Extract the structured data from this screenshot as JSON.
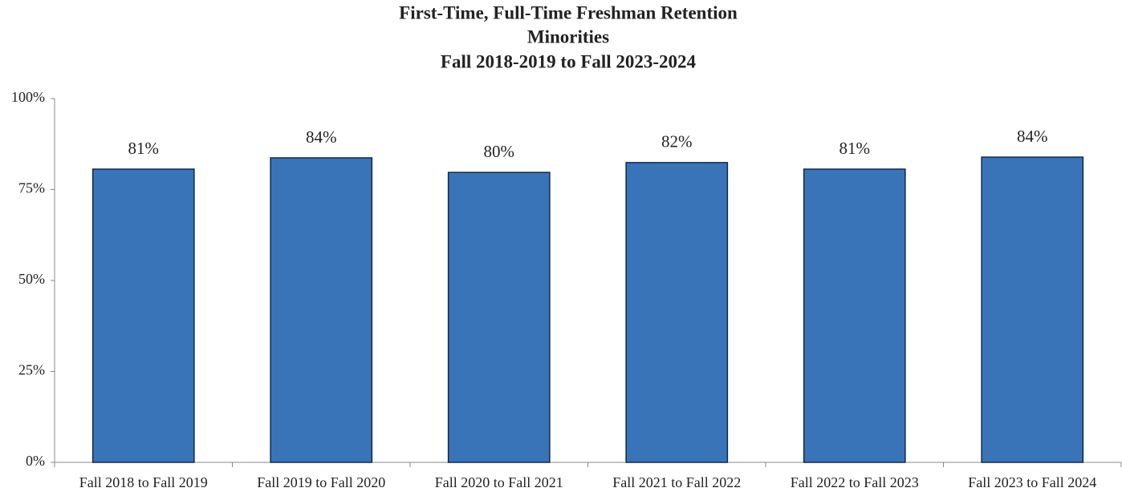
{
  "chart_data": {
    "type": "bar",
    "title": [
      "First-Time, Full-Time Freshman Retention",
      "Minorities",
      "Fall 2018-2019 to Fall 2023-2024"
    ],
    "categories": [
      "Fall 2018 to Fall 2019",
      "Fall 2019 to Fall 2020",
      "Fall 2020 to Fall 2021",
      "Fall 2021 to Fall 2022",
      "Fall 2022 to Fall 2023",
      "Fall 2023 to Fall 2024"
    ],
    "values": [
      80.6,
      83.7,
      79.7,
      82.4,
      80.6,
      83.9
    ],
    "value_labels": [
      "81%",
      "84%",
      "80%",
      "82%",
      "81%",
      "84%"
    ],
    "color": "#3a74b8",
    "ylim": [
      0,
      100
    ],
    "yticks": [
      {
        "value": 0,
        "label": "0%"
      },
      {
        "value": 25,
        "label": "25%"
      },
      {
        "value": 50,
        "label": "50%"
      },
      {
        "value": 75,
        "label": "75%"
      },
      {
        "value": 100,
        "label": "100%"
      }
    ],
    "grid": false
  }
}
